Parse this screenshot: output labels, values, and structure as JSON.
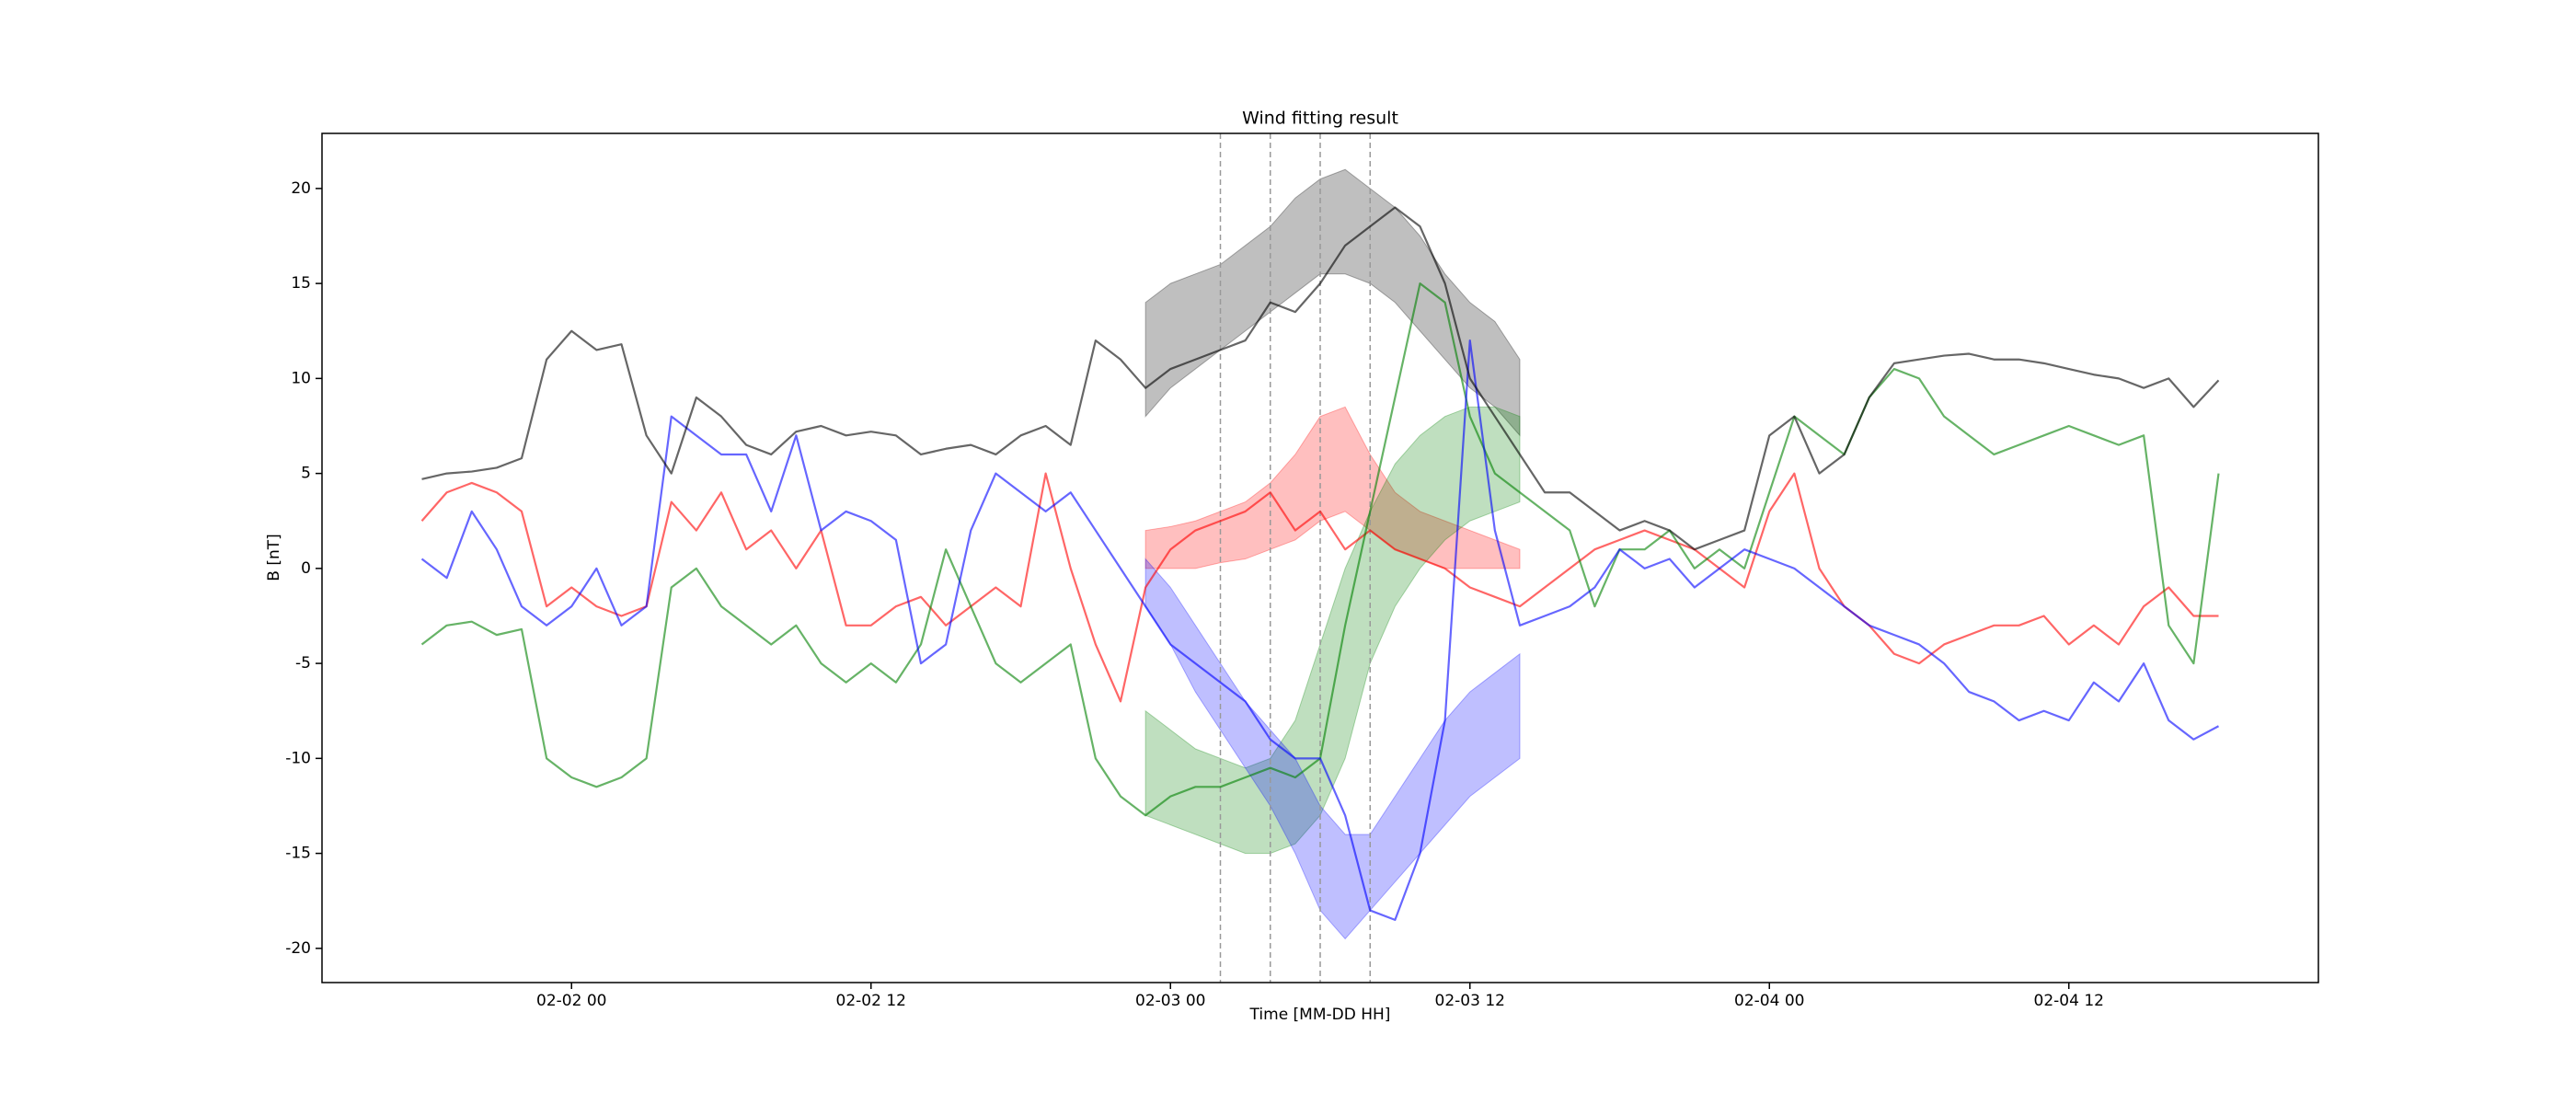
{
  "chart_data": {
    "type": "line",
    "title": "Wind fitting result",
    "xlabel": "Time [MM-DD HH]",
    "ylabel": "B [nT]",
    "x": [
      "02-01 18",
      "02-01 19",
      "02-01 20",
      "02-01 21",
      "02-01 22",
      "02-01 23",
      "02-02 00",
      "02-02 01",
      "02-02 02",
      "02-02 03",
      "02-02 04",
      "02-02 05",
      "02-02 06",
      "02-02 07",
      "02-02 08",
      "02-02 09",
      "02-02 10",
      "02-02 11",
      "02-02 12",
      "02-02 13",
      "02-02 14",
      "02-02 15",
      "02-02 16",
      "02-02 17",
      "02-02 18",
      "02-02 19",
      "02-02 20",
      "02-02 21",
      "02-02 22",
      "02-02 23",
      "02-03 00",
      "02-03 01",
      "02-03 02",
      "02-03 03",
      "02-03 04",
      "02-03 05",
      "02-03 06",
      "02-03 07",
      "02-03 08",
      "02-03 09",
      "02-03 10",
      "02-03 11",
      "02-03 12",
      "02-03 13",
      "02-03 14",
      "02-03 15",
      "02-03 16",
      "02-03 17",
      "02-03 18",
      "02-03 19",
      "02-03 20",
      "02-03 21",
      "02-03 22",
      "02-03 23",
      "02-04 00",
      "02-04 01",
      "02-04 02",
      "02-04 03",
      "02-04 04",
      "02-04 05",
      "02-04 06",
      "02-04 07",
      "02-04 08",
      "02-04 09",
      "02-04 10",
      "02-04 11",
      "02-04 12",
      "02-04 13",
      "02-04 14",
      "02-04 15",
      "02-04 16",
      "02-04 17",
      "02-04 18"
    ],
    "series": [
      {
        "color": "#ff0000",
        "values": [
          2.5,
          4,
          4.5,
          4,
          3,
          -2,
          -1,
          -2,
          -2.5,
          -2,
          3.5,
          2,
          4,
          1,
          2,
          0,
          2,
          -3,
          -3,
          -2,
          -1.5,
          -3,
          -2,
          -1,
          -2,
          5,
          0,
          -4,
          -7,
          -1,
          1,
          2,
          2.5,
          3,
          4,
          2,
          3,
          1,
          2,
          1,
          0.5,
          0,
          -1,
          -1.5,
          -2,
          -1,
          0,
          1,
          1.5,
          2,
          1.5,
          1,
          0,
          -1,
          3,
          5,
          0,
          -2,
          -3,
          -4.5,
          -5,
          -4,
          -3.5,
          -3,
          -3,
          -2.5,
          -4,
          -3,
          -4,
          -2,
          -1,
          -2.5,
          -2.5
        ]
      },
      {
        "color": "#008000",
        "values": [
          -4,
          -3,
          -2.8,
          -3.5,
          -3.2,
          -10,
          -11,
          -11.5,
          -11,
          -10,
          -1,
          0,
          -2,
          -3,
          -4,
          -3,
          -5,
          -6,
          -5,
          -6,
          -4,
          1,
          -2,
          -5,
          -6,
          -5,
          -4,
          -10,
          -12,
          -13,
          -12,
          -11.5,
          -11.5,
          -11,
          -10.5,
          -11,
          -10,
          -3,
          3,
          9,
          15,
          14,
          8,
          5,
          4,
          3,
          2,
          -2,
          1,
          1,
          2,
          0,
          1,
          0,
          4,
          8,
          7,
          6,
          9,
          10.5,
          10,
          8,
          7,
          6,
          6.5,
          7,
          7.5,
          7,
          6.5,
          7,
          -3,
          -5,
          5
        ]
      },
      {
        "color": "#0000ff",
        "values": [
          0.5,
          -0.5,
          3,
          1,
          -2,
          -3,
          -2,
          0,
          -3,
          -2,
          8,
          7,
          6,
          6,
          3,
          7,
          2,
          3,
          2.5,
          1.5,
          -5,
          -4,
          2,
          5,
          4,
          3,
          4,
          2,
          0,
          -2,
          -4,
          -5,
          -6,
          -7,
          -9,
          -10,
          -10,
          -13,
          -18,
          -18.5,
          -15,
          -8,
          12,
          2,
          -3,
          -2.5,
          -2,
          -1,
          1,
          0,
          0.5,
          -1,
          0,
          1,
          0.5,
          0,
          -1,
          -2,
          -3,
          -3.5,
          -4,
          -5,
          -6.5,
          -7,
          -8,
          -7.5,
          -8,
          -6,
          -7,
          -5,
          -8,
          -9,
          -8.3
        ]
      },
      {
        "color": "#000000",
        "values": [
          4.7,
          5.0,
          5.1,
          5.3,
          5.8,
          11,
          12.5,
          11.5,
          11.8,
          7,
          5,
          9,
          8,
          6.5,
          6,
          7.2,
          7.5,
          7,
          7.2,
          7,
          6,
          6.3,
          6.5,
          6,
          7,
          7.5,
          6.5,
          12,
          11,
          9.5,
          10.5,
          11,
          11.5,
          12,
          14,
          13.5,
          15,
          17,
          18,
          19,
          18,
          15,
          10,
          8,
          6,
          4,
          4,
          3,
          2,
          2.5,
          2,
          1,
          1.5,
          2,
          7,
          8,
          5,
          6,
          9,
          10.8,
          11,
          11.2,
          11.3,
          11,
          11,
          10.8,
          10.5,
          10.2,
          10,
          9.5,
          10,
          8.5,
          9.9
        ]
      }
    ],
    "band_x": [
      "02-02 23",
      "02-03 00",
      "02-03 01",
      "02-03 02",
      "02-03 03",
      "02-03 04",
      "02-03 05",
      "02-03 06",
      "02-03 07",
      "02-03 08",
      "02-03 09",
      "02-03 10",
      "02-03 11",
      "02-03 12",
      "02-03 13",
      "02-03 14"
    ],
    "bands": [
      {
        "color": "#000000",
        "lower": [
          8,
          9.5,
          10.5,
          11.5,
          12.5,
          13.5,
          14.5,
          15.5,
          15.5,
          15,
          14,
          12.5,
          11,
          9.5,
          8.5,
          7
        ],
        "upper": [
          14,
          15,
          15.5,
          16,
          17,
          18,
          19.5,
          20.5,
          21,
          20,
          19,
          17.5,
          15.5,
          14,
          13,
          11
        ]
      },
      {
        "color": "#ff0000",
        "lower": [
          0,
          0,
          0,
          0.3,
          0.5,
          1,
          1.5,
          2.5,
          3,
          2,
          1,
          0.5,
          0,
          0,
          0,
          0
        ],
        "upper": [
          2,
          2.2,
          2.5,
          3,
          3.5,
          4.5,
          6,
          8,
          8.5,
          6,
          4,
          3,
          2.5,
          2,
          1.5,
          1
        ]
      },
      {
        "color": "#008000",
        "lower": [
          -13,
          -13.5,
          -14,
          -14.5,
          -15,
          -15,
          -14.5,
          -13,
          -10,
          -5,
          -2,
          0,
          1.5,
          2.5,
          3,
          3.5
        ],
        "upper": [
          -7.5,
          -8.5,
          -9.5,
          -10,
          -10.5,
          -10,
          -8,
          -4,
          0,
          3,
          5.5,
          7,
          8,
          8.5,
          8.5,
          8
        ]
      },
      {
        "color": "#0000ff",
        "lower": [
          -2,
          -4,
          -6.5,
          -8.5,
          -10.5,
          -12.5,
          -15,
          -18,
          -19.5,
          -18,
          -16.5,
          -15,
          -13.5,
          -12,
          -11,
          -10
        ],
        "upper": [
          0.5,
          -1,
          -3,
          -5,
          -7,
          -8.5,
          -10,
          -12.5,
          -14,
          -14,
          -12,
          -10,
          -8,
          -6.5,
          -5.5,
          -4.5
        ]
      }
    ],
    "vlines": [
      "02-03 02",
      "02-03 04",
      "02-03 06",
      "02-03 08"
    ],
    "xlim": [
      "02-01 14",
      "02-04 22"
    ],
    "ylim": [
      -21.8,
      22.9
    ],
    "xticks": [
      "02-02 00",
      "02-02 12",
      "02-03 00",
      "02-03 12",
      "02-04 00",
      "02-04 12"
    ],
    "yticks": [
      -20,
      -15,
      -10,
      -5,
      0,
      5,
      10,
      15,
      20
    ],
    "grid": false
  }
}
